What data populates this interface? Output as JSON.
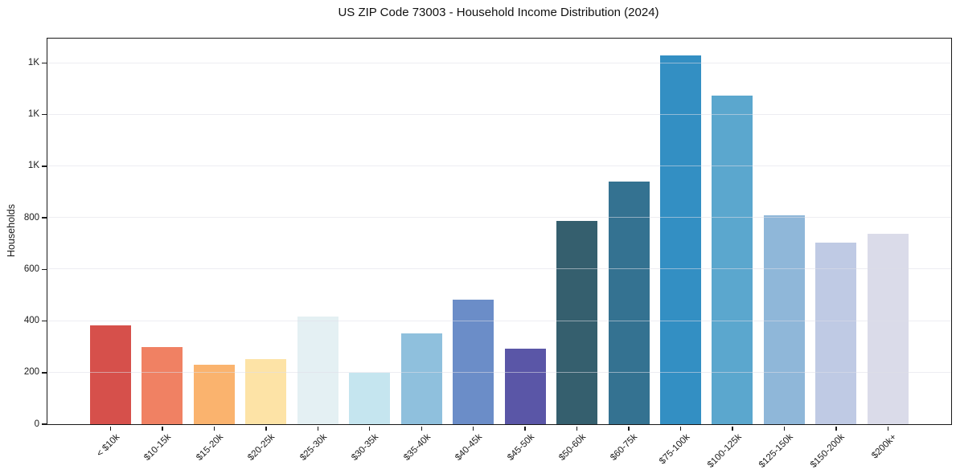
{
  "chart_data": {
    "type": "bar",
    "title": "US ZIP Code 73003 - Household Income Distribution (2024)",
    "xlabel": "",
    "ylabel": "Households",
    "ylim": [
      0,
      1495
    ],
    "grid": "horizontal, drawn over bars",
    "legend": "none",
    "categories": [
      "< $10k",
      "$10-15k",
      "$15-20k",
      "$20-25k",
      "$25-30k",
      "$30-35k",
      "$35-40k",
      "$40-45k",
      "$45-50k",
      "$50-60k",
      "$60-75k",
      "$75-100k",
      "$100-125k",
      "$125-150k",
      "$150-200k",
      "$200k+"
    ],
    "values": [
      382,
      300,
      229,
      253,
      416,
      198,
      352,
      483,
      294,
      788,
      940,
      1430,
      1274,
      810,
      704,
      738
    ],
    "bar_colors": [
      "#d6504b",
      "#f08163",
      "#fab36e",
      "#fde3a6",
      "#e4f0f3",
      "#c5e5ef",
      "#8fc0dd",
      "#6b8dc8",
      "#5a56a7",
      "#355f6e",
      "#347291",
      "#338fc3",
      "#5ba7ce",
      "#8fb7d9",
      "#bfcae4",
      "#dadbe9"
    ],
    "yticks": [
      {
        "value": 0,
        "label": "0"
      },
      {
        "value": 200,
        "label": "200"
      },
      {
        "value": 400,
        "label": "400"
      },
      {
        "value": 600,
        "label": "600"
      },
      {
        "value": 800,
        "label": "800"
      },
      {
        "value": 1000,
        "label": "1K"
      },
      {
        "value": 1200,
        "label": "1K"
      },
      {
        "value": 1400,
        "label": "1K"
      }
    ],
    "colors": {
      "spine": "#1a1a1a",
      "gridline": "#e5e5ee",
      "background": "#ffffff",
      "text": "#1a1a1a"
    }
  }
}
